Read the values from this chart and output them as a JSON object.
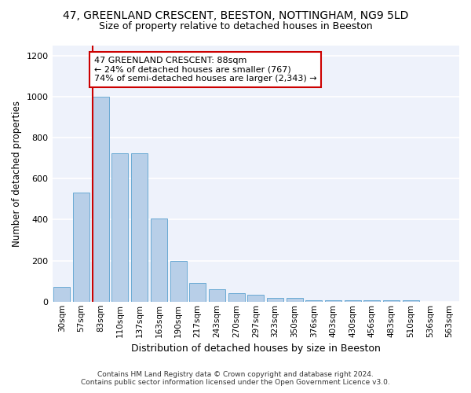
{
  "title": "47, GREENLAND CRESCENT, BEESTON, NOTTINGHAM, NG9 5LD",
  "subtitle": "Size of property relative to detached houses in Beeston",
  "xlabel": "Distribution of detached houses by size in Beeston",
  "ylabel": "Number of detached properties",
  "bar_color": "#b8cfe8",
  "bar_edge_color": "#6aaad4",
  "background_color": "#eef2fb",
  "grid_color": "#ffffff",
  "categories": [
    "30sqm",
    "57sqm",
    "83sqm",
    "110sqm",
    "137sqm",
    "163sqm",
    "190sqm",
    "217sqm",
    "243sqm",
    "270sqm",
    "297sqm",
    "323sqm",
    "350sqm",
    "376sqm",
    "403sqm",
    "430sqm",
    "456sqm",
    "483sqm",
    "510sqm",
    "536sqm",
    "563sqm"
  ],
  "values": [
    70,
    530,
    1000,
    725,
    725,
    405,
    198,
    90,
    60,
    42,
    32,
    18,
    18,
    8,
    5,
    5,
    5,
    5,
    5,
    0,
    0
  ],
  "annotation_text": "47 GREENLAND CRESCENT: 88sqm\n← 24% of detached houses are smaller (767)\n74% of semi-detached houses are larger (2,343) →",
  "annotation_box_color": "#ffffff",
  "annotation_box_edge_color": "#cc0000",
  "redline_x": 2.0,
  "ylim": [
    0,
    1250
  ],
  "yticks": [
    0,
    200,
    400,
    600,
    800,
    1000,
    1200
  ],
  "footer_line1": "Contains HM Land Registry data © Crown copyright and database right 2024.",
  "footer_line2": "Contains public sector information licensed under the Open Government Licence v3.0."
}
